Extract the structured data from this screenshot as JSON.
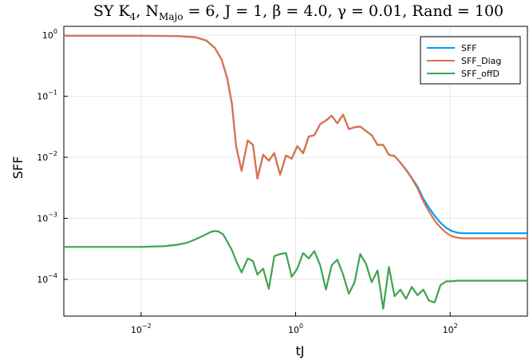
{
  "chart_data": {
    "type": "line",
    "title": "SYK4, N_Majo = 6, J = 1, β = 4.0, γ = 0.01, Rand = 100",
    "title_parts": {
      "p1": "SY K",
      "p1_sub": "4",
      "p2": ", N",
      "p2_sub": "Majo",
      "p3": " = 6, J = 1, β = 4.0, γ = 0.01, Rand = 100"
    },
    "xlabel": "tJ",
    "ylabel": "SFF",
    "x_scale": "log",
    "y_scale": "log",
    "xlim": [
      0.001,
      1000
    ],
    "ylim": [
      2.5e-05,
      1.4
    ],
    "grid": true,
    "legend_position": "top-right",
    "x_ticks": [
      {
        "value": 0.01,
        "base": "10",
        "exp": "−2"
      },
      {
        "value": 1,
        "base": "10",
        "exp": "0"
      },
      {
        "value": 100,
        "base": "10",
        "exp": "2"
      }
    ],
    "y_ticks": [
      {
        "value": 1,
        "base": "10",
        "exp": "0"
      },
      {
        "value": 0.1,
        "base": "10",
        "exp": "−1"
      },
      {
        "value": 0.01,
        "base": "10",
        "exp": "−2"
      },
      {
        "value": 0.001,
        "base": "10",
        "exp": "−3"
      },
      {
        "value": 0.0001,
        "base": "10",
        "exp": "−4"
      }
    ],
    "series": [
      {
        "name": "SFF",
        "color": "#009AFA",
        "x": [
          0.001,
          0.01,
          0.03,
          0.05,
          0.07,
          0.09,
          0.11,
          0.13,
          0.15,
          0.17,
          0.2,
          0.24,
          0.28,
          0.32,
          0.38,
          0.45,
          0.53,
          0.63,
          0.75,
          0.89,
          1.05,
          1.25,
          1.48,
          1.75,
          2.08,
          2.47,
          2.93,
          3.47,
          4.12,
          4.88,
          5.79,
          6.87,
          8.15,
          9.66,
          11.5,
          13.6,
          16.1,
          19.1,
          22.7,
          26.9,
          31.9,
          37.8,
          44.9,
          53.2,
          63.1,
          74.9,
          88.8,
          105,
          125,
          148,
          176,
          250,
          500,
          1000
        ],
        "y": [
          0.98,
          0.98,
          0.97,
          0.93,
          0.82,
          0.62,
          0.4,
          0.2,
          0.075,
          0.015,
          0.006,
          0.019,
          0.016,
          0.0045,
          0.011,
          0.0088,
          0.0117,
          0.0052,
          0.0107,
          0.0095,
          0.0153,
          0.0117,
          0.022,
          0.023,
          0.035,
          0.04,
          0.048,
          0.036,
          0.05,
          0.029,
          0.031,
          0.032,
          0.027,
          0.023,
          0.016,
          0.016,
          0.011,
          0.0105,
          0.0082,
          0.0063,
          0.0046,
          0.0033,
          0.0021,
          0.0015,
          0.0011,
          0.00085,
          0.0007,
          0.00062,
          0.00058,
          0.00057,
          0.00057,
          0.00057,
          0.00057,
          0.00057
        ]
      },
      {
        "name": "SFF_Diag",
        "color": "#E26F46",
        "x": [
          0.001,
          0.01,
          0.03,
          0.05,
          0.07,
          0.09,
          0.11,
          0.13,
          0.15,
          0.17,
          0.2,
          0.24,
          0.28,
          0.32,
          0.38,
          0.45,
          0.53,
          0.63,
          0.75,
          0.89,
          1.05,
          1.25,
          1.48,
          1.75,
          2.08,
          2.47,
          2.93,
          3.47,
          4.12,
          4.88,
          5.79,
          6.87,
          8.15,
          9.66,
          11.5,
          13.6,
          16.1,
          19.1,
          22.7,
          26.9,
          31.9,
          37.8,
          44.9,
          53.2,
          63.1,
          74.9,
          88.8,
          105,
          125,
          148,
          176,
          250,
          500,
          1000
        ],
        "y": [
          0.98,
          0.98,
          0.97,
          0.93,
          0.82,
          0.62,
          0.4,
          0.2,
          0.075,
          0.015,
          0.006,
          0.019,
          0.016,
          0.0045,
          0.011,
          0.0088,
          0.0117,
          0.0052,
          0.0107,
          0.0095,
          0.0153,
          0.0117,
          0.022,
          0.023,
          0.035,
          0.04,
          0.048,
          0.036,
          0.05,
          0.029,
          0.031,
          0.032,
          0.027,
          0.023,
          0.016,
          0.016,
          0.011,
          0.0105,
          0.0082,
          0.0062,
          0.0045,
          0.0031,
          0.0019,
          0.0013,
          0.00092,
          0.00071,
          0.00058,
          0.00051,
          0.00048,
          0.00047,
          0.00047,
          0.00047,
          0.00047,
          0.00047
        ]
      },
      {
        "name": "SFF_offD",
        "color": "#3EA44E",
        "x": [
          0.001,
          0.01,
          0.02,
          0.03,
          0.04,
          0.05,
          0.06,
          0.07,
          0.08,
          0.09,
          0.1,
          0.115,
          0.13,
          0.15,
          0.17,
          0.2,
          0.24,
          0.28,
          0.32,
          0.38,
          0.45,
          0.53,
          0.63,
          0.75,
          0.89,
          1.05,
          1.25,
          1.48,
          1.75,
          2.08,
          2.47,
          2.93,
          3.47,
          4.12,
          4.88,
          5.79,
          6.87,
          8.15,
          9.66,
          11.5,
          13.6,
          16.1,
          19.1,
          22.7,
          26.9,
          31.9,
          37.8,
          44.9,
          53.2,
          63.1,
          74.9,
          88.8,
          105,
          125,
          250,
          500,
          1000
        ],
        "y": [
          0.00034,
          0.00034,
          0.00035,
          0.00037,
          0.0004,
          0.00045,
          0.0005,
          0.00055,
          0.0006,
          0.00062,
          0.00061,
          0.00055,
          0.00042,
          0.0003,
          0.0002,
          0.00013,
          0.00022,
          0.0002,
          0.00012,
          0.00015,
          7e-05,
          0.00024,
          0.00026,
          0.00027,
          0.00011,
          0.00015,
          0.00027,
          0.00022,
          0.00029,
          0.00017,
          6.8e-05,
          0.00017,
          0.00021,
          0.00012,
          5.8e-05,
          9e-05,
          0.00026,
          0.00018,
          9e-05,
          0.00014,
          3.3e-05,
          0.00016,
          5.3e-05,
          6.8e-05,
          4.8e-05,
          7.5e-05,
          5.5e-05,
          6.8e-05,
          4.5e-05,
          4.2e-05,
          8e-05,
          9.3e-05,
          9.3e-05,
          9.5e-05,
          9.5e-05,
          9.5e-05,
          9.5e-05
        ]
      }
    ]
  }
}
